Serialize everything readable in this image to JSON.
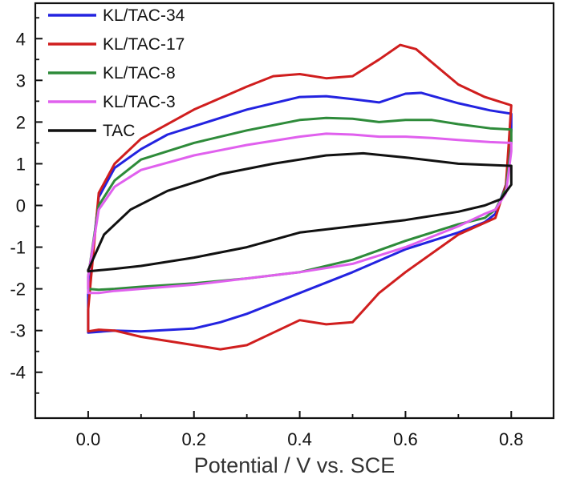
{
  "chart_data": {
    "type": "line",
    "title": "",
    "xlabel": "Potential / V vs. SCE",
    "ylabel": "",
    "xlim": [
      -0.1,
      0.88
    ],
    "ylim": [
      -5.1,
      4.85
    ],
    "xticks": [
      {
        "value": 0.0,
        "label": "0.0"
      },
      {
        "value": 0.2,
        "label": "0.2"
      },
      {
        "value": 0.4,
        "label": "0.4"
      },
      {
        "value": 0.6,
        "label": "0.6"
      },
      {
        "value": 0.8,
        "label": "0.8"
      }
    ],
    "yticks": [
      {
        "value": 4,
        "label": "4"
      },
      {
        "value": 3,
        "label": "3"
      },
      {
        "value": 2,
        "label": "2"
      },
      {
        "value": 1,
        "label": "1"
      },
      {
        "value": 0,
        "label": "0"
      },
      {
        "value": -1,
        "label": "-1"
      },
      {
        "value": -2,
        "label": "-2"
      },
      {
        "value": -3,
        "label": "-3"
      },
      {
        "value": -4,
        "label": "-4"
      }
    ],
    "legend_position": "top-left",
    "series": [
      {
        "name": "KL/TAC-34",
        "color": "#2323e0",
        "x": [
          0.0,
          0.02,
          0.05,
          0.1,
          0.15,
          0.2,
          0.3,
          0.4,
          0.45,
          0.5,
          0.55,
          0.6,
          0.63,
          0.7,
          0.76,
          0.8,
          0.8,
          0.79,
          0.77,
          0.75,
          0.7,
          0.6,
          0.5,
          0.45,
          0.4,
          0.3,
          0.25,
          0.2,
          0.1,
          0.05,
          0.02,
          0.0,
          0.0,
          0.0
        ],
        "y": [
          -2.1,
          0.2,
          0.9,
          1.35,
          1.7,
          1.9,
          2.3,
          2.6,
          2.62,
          2.55,
          2.47,
          2.68,
          2.7,
          2.45,
          2.28,
          2.2,
          1.8,
          0.5,
          -0.2,
          -0.4,
          -0.65,
          -1.05,
          -1.6,
          -1.85,
          -2.1,
          -2.6,
          -2.8,
          -2.95,
          -3.02,
          -3.0,
          -3.03,
          -3.05,
          -2.7,
          -2.1
        ]
      },
      {
        "name": "KL/TAC-17",
        "color": "#d01e1e",
        "x": [
          0.0,
          0.02,
          0.05,
          0.1,
          0.2,
          0.3,
          0.35,
          0.4,
          0.45,
          0.5,
          0.55,
          0.59,
          0.62,
          0.7,
          0.75,
          0.8,
          0.8,
          0.79,
          0.77,
          0.7,
          0.6,
          0.55,
          0.5,
          0.45,
          0.4,
          0.35,
          0.3,
          0.25,
          0.2,
          0.1,
          0.05,
          0.02,
          0.0,
          0.0,
          0.0
        ],
        "y": [
          -2.5,
          0.3,
          1.0,
          1.6,
          2.3,
          2.85,
          3.1,
          3.15,
          3.05,
          3.1,
          3.5,
          3.85,
          3.75,
          2.9,
          2.6,
          2.4,
          2.4,
          0.5,
          -0.3,
          -0.7,
          -1.6,
          -2.1,
          -2.8,
          -2.85,
          -2.75,
          -3.05,
          -3.35,
          -3.45,
          -3.35,
          -3.15,
          -3.0,
          -2.98,
          -3.02,
          -2.8,
          -2.5
        ]
      },
      {
        "name": "KL/TAC-8",
        "color": "#2e8b3a",
        "x": [
          0.0,
          0.02,
          0.05,
          0.1,
          0.2,
          0.3,
          0.4,
          0.45,
          0.5,
          0.55,
          0.6,
          0.65,
          0.7,
          0.76,
          0.8,
          0.8,
          0.79,
          0.77,
          0.75,
          0.7,
          0.6,
          0.5,
          0.4,
          0.3,
          0.2,
          0.1,
          0.05,
          0.02,
          0.0,
          0.0
        ],
        "y": [
          -1.7,
          0.0,
          0.6,
          1.1,
          1.5,
          1.8,
          2.05,
          2.1,
          2.08,
          2.0,
          2.05,
          2.05,
          1.95,
          1.85,
          1.82,
          1.5,
          0.4,
          -0.1,
          -0.3,
          -0.45,
          -0.85,
          -1.3,
          -1.6,
          -1.75,
          -1.87,
          -1.95,
          -2.0,
          -2.02,
          -2.0,
          -1.7
        ]
      },
      {
        "name": "KL/TAC-3",
        "color": "#e060ee",
        "x": [
          0.0,
          0.02,
          0.05,
          0.1,
          0.2,
          0.3,
          0.4,
          0.45,
          0.5,
          0.55,
          0.6,
          0.65,
          0.7,
          0.76,
          0.8,
          0.8,
          0.79,
          0.77,
          0.75,
          0.7,
          0.6,
          0.5,
          0.4,
          0.3,
          0.2,
          0.1,
          0.05,
          0.02,
          0.0,
          0.0
        ],
        "y": [
          -1.7,
          -0.1,
          0.45,
          0.85,
          1.2,
          1.45,
          1.65,
          1.72,
          1.7,
          1.65,
          1.65,
          1.62,
          1.57,
          1.52,
          1.5,
          1.3,
          0.3,
          -0.1,
          -0.2,
          -0.5,
          -1.0,
          -1.4,
          -1.6,
          -1.75,
          -1.9,
          -2.0,
          -2.05,
          -2.1,
          -2.1,
          -1.7
        ]
      },
      {
        "name": "TAC",
        "color": "#111111",
        "x": [
          0.0,
          0.03,
          0.08,
          0.15,
          0.25,
          0.35,
          0.45,
          0.52,
          0.6,
          0.7,
          0.8,
          0.8,
          0.78,
          0.75,
          0.7,
          0.6,
          0.5,
          0.4,
          0.3,
          0.2,
          0.1,
          0.05,
          0.0,
          0.0
        ],
        "y": [
          -1.55,
          -0.7,
          -0.1,
          0.35,
          0.75,
          1.0,
          1.2,
          1.25,
          1.15,
          1.0,
          0.95,
          0.5,
          0.15,
          0.0,
          -0.15,
          -0.35,
          -0.5,
          -0.65,
          -1.0,
          -1.25,
          -1.45,
          -1.52,
          -1.58,
          -1.55
        ]
      }
    ]
  }
}
